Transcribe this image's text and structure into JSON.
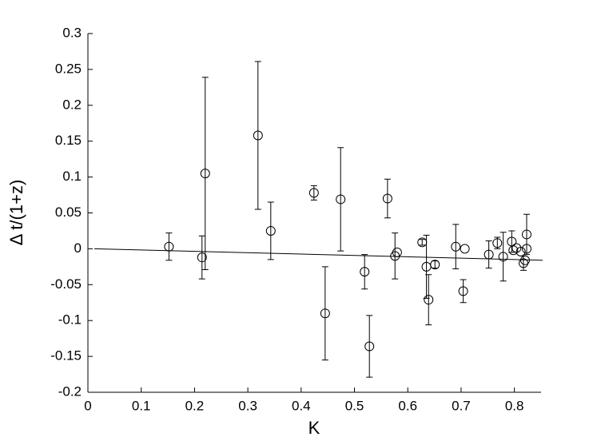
{
  "chart_data": {
    "type": "scatter",
    "x_label": "K",
    "y_label": "Δ t/(1+z)",
    "xlim": [
      0,
      0.85
    ],
    "xticks": [
      0,
      0.1,
      0.2,
      0.3,
      0.4,
      0.5,
      0.6,
      0.7,
      0.8
    ],
    "ylim": [
      -0.2,
      0.3
    ],
    "yticks": [
      -0.2,
      -0.15,
      -0.1,
      -0.05,
      0,
      0.05,
      0.1,
      0.15,
      0.2,
      0.25,
      0.3
    ],
    "color": "#000000",
    "x": [
      0.152,
      0.214,
      0.22,
      0.319,
      0.343,
      0.424,
      0.445,
      0.474,
      0.519,
      0.528,
      0.562,
      0.576,
      0.58,
      0.627,
      0.635,
      0.639,
      0.651,
      0.69,
      0.707,
      0.704,
      0.752,
      0.768,
      0.779,
      0.795,
      0.798,
      0.804,
      0.812,
      0.817,
      0.82,
      0.823,
      0.823
    ],
    "values": [
      0.003,
      -0.012,
      0.105,
      0.158,
      0.025,
      0.078,
      -0.09,
      0.069,
      -0.032,
      -0.136,
      0.07,
      -0.01,
      -0.005,
      0.009,
      -0.025,
      -0.071,
      -0.022,
      0.003,
      0,
      -0.059,
      -0.008,
      0.008,
      -0.011,
      0.01,
      -0.002,
      0.001,
      -0.004,
      -0.02,
      -0.016,
      0.02,
      0
    ],
    "errors": [
      0.019,
      0.03,
      0.134,
      0.103,
      0.04,
      0.01,
      0.065,
      0.072,
      0.024,
      0.043,
      0.027,
      0.032,
      null,
      0.004,
      0.044,
      0.035,
      0.005,
      0.031,
      null,
      0.016,
      0.019,
      0.008,
      0.034,
      0.015,
      null,
      null,
      null,
      0.01,
      null,
      0.028,
      null
    ],
    "fit_line": {
      "x": [
        0.012,
        0.853
      ],
      "y": [
        0,
        -0.016
      ]
    }
  }
}
